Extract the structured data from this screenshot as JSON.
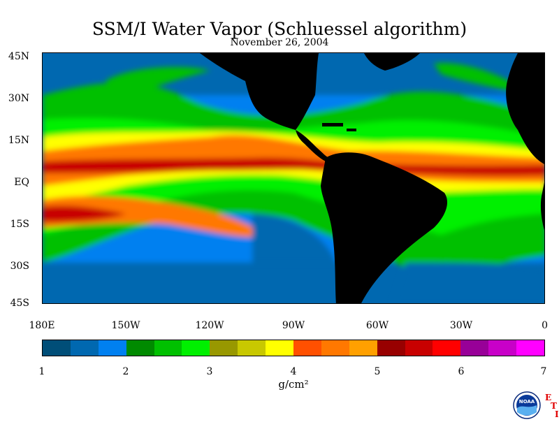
{
  "title": "SSM/I Water Vapor (Schluessel algorithm)",
  "subtitle": "November 26, 2004",
  "lat_labels": [
    "45N",
    "30N",
    "15N",
    "EQ",
    "15S",
    "30S",
    "45S"
  ],
  "lon_labels": [
    "180E",
    "150W",
    "120W",
    "90W",
    "60W",
    "30W",
    "0"
  ],
  "colorbar": {
    "ticks": [
      "1",
      "2",
      "3",
      "4",
      "5",
      "6",
      "7"
    ],
    "unit": "g/cm²",
    "colors": [
      "#004e78",
      "#0068b0",
      "#0080f0",
      "#008a00",
      "#00c000",
      "#00f000",
      "#989800",
      "#c8c800",
      "#ffff00",
      "#ff5000",
      "#ff7800",
      "#ffa000",
      "#980000",
      "#c80000",
      "#ff0000",
      "#980098",
      "#c800c8",
      "#ff00ff"
    ]
  },
  "logos": {
    "noaa": "NOAA",
    "eti_e": "E",
    "eti_t": "T",
    "eti_i": "I"
  }
}
